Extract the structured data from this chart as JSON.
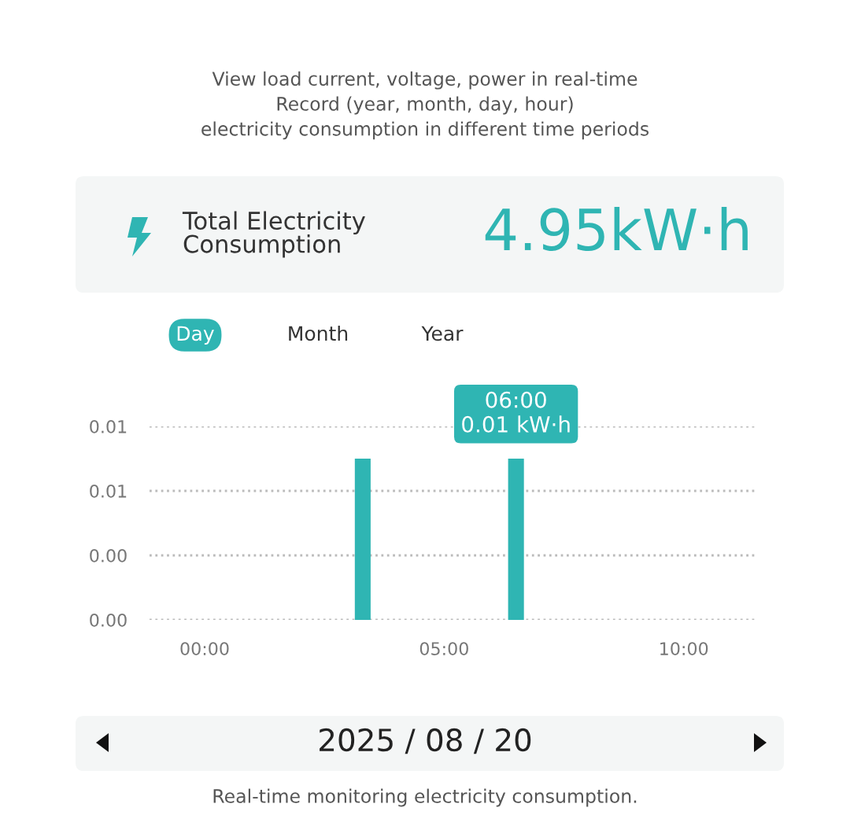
{
  "chart_data": {
    "type": "bar",
    "title": "View load current, voltage, power in real-time\nRecord (year, month, day, hour)\nelectricity consumption in different time periods",
    "x": [
      3.3,
      6.5
    ],
    "values": [
      0.01,
      0.01
    ],
    "color": "#2fb5b3",
    "xlim": [
      -1.15,
      11.5
    ],
    "xticks": [
      {
        "value": 0,
        "label": "00:00"
      },
      {
        "value": 5,
        "label": "05:00"
      },
      {
        "value": 10,
        "label": "10:00"
      }
    ],
    "ylim": [
      0,
      0.012
    ],
    "yticks": [
      {
        "value": 0,
        "label": "0.00"
      },
      {
        "value": 0.004,
        "label": "0.00"
      },
      {
        "value": 0.008,
        "label": "0.01"
      },
      {
        "value": 0.012,
        "label": "0.01"
      }
    ],
    "grid": "y",
    "line_style": "dotted",
    "annotations": [
      "Total Electricity\nConsumption",
      "4.95kW·h",
      "Day",
      "Month",
      "Year",
      "2025 / 08 / 20",
      "Real-time monitoring electricity consumption.",
      {
        "text": "06:00\n0.01 kW·h",
        "x": 6.5,
        "y": 0.01
      }
    ]
  }
}
